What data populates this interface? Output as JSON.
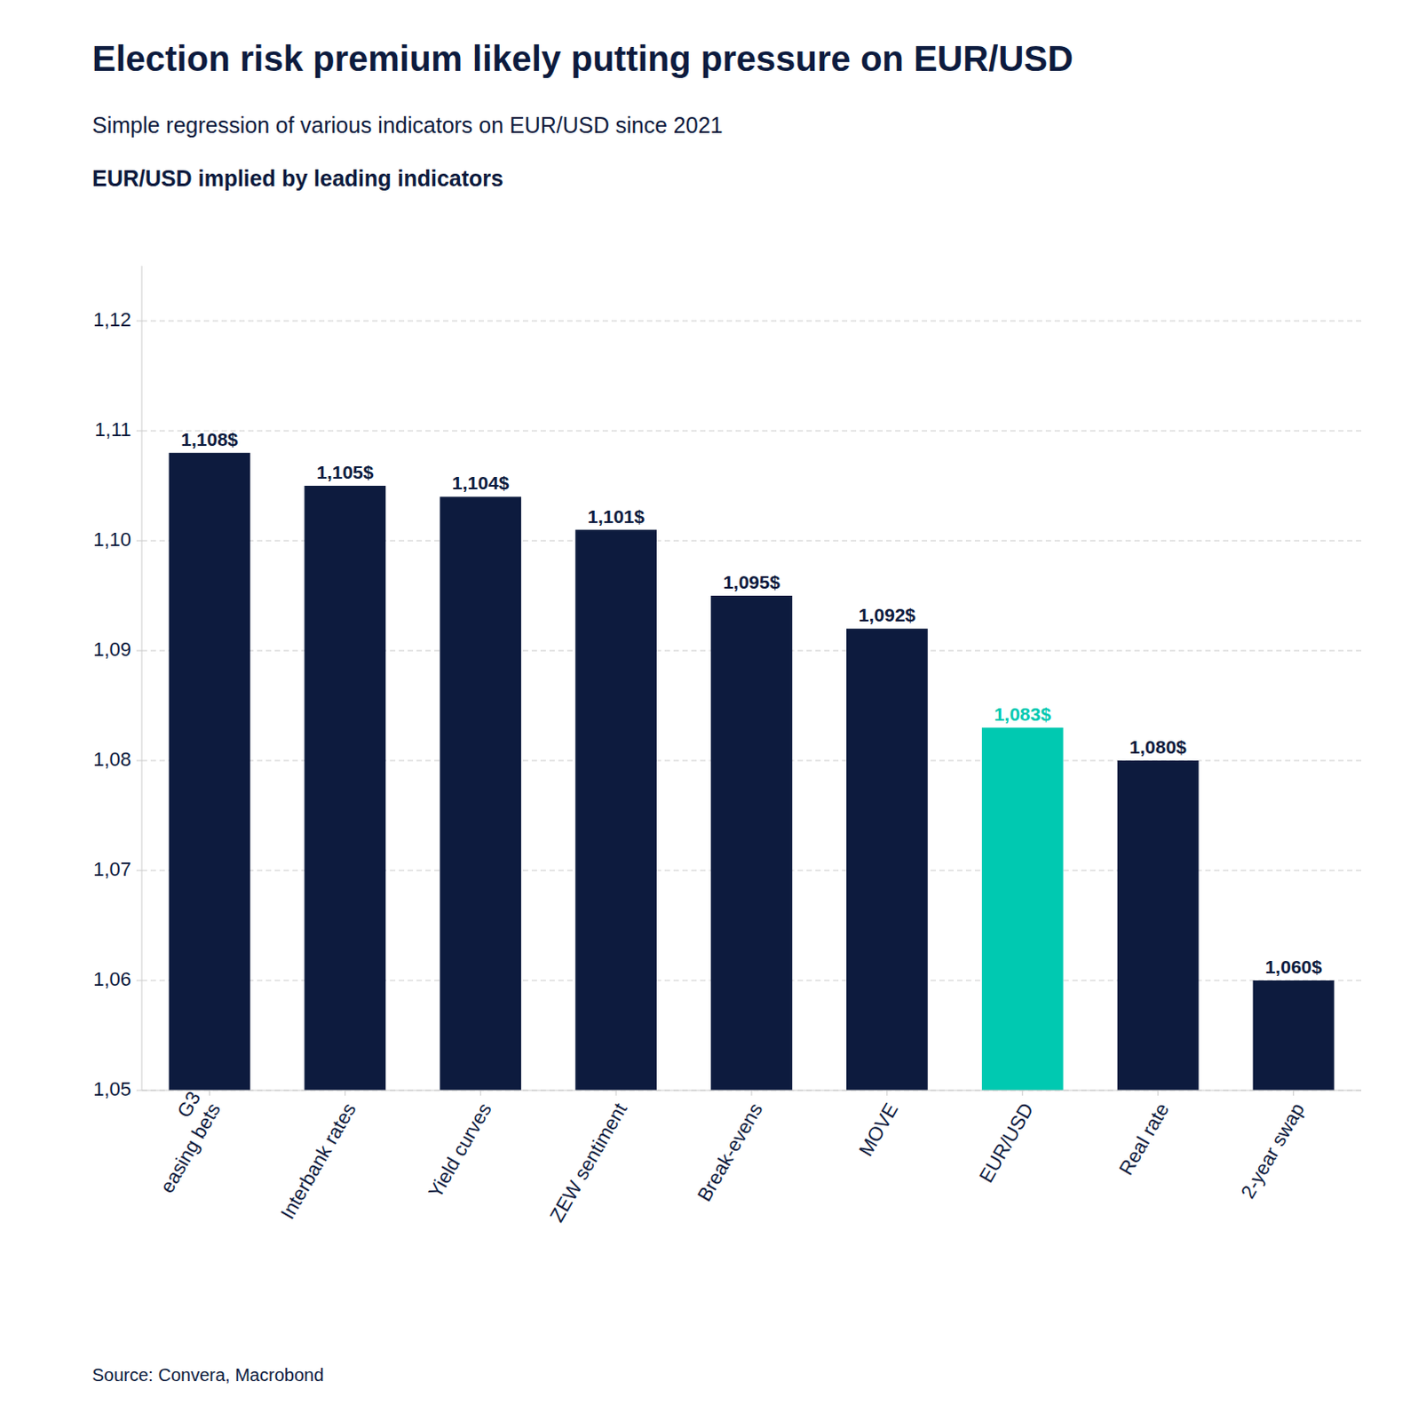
{
  "chart_data": {
    "type": "bar",
    "title": "Election risk premium likely putting pressure on EUR/USD",
    "subtitle": "Simple regression of various indicators on EUR/USD since 2021",
    "annotations": [
      "EUR/USD implied by leading indicators",
      "Source: Convera, Macrobond"
    ],
    "categories": [
      "G3\neasing bets",
      "Interbank rates",
      "Yield curves",
      "ZEW sentiment",
      "Break-evens",
      "MOVE",
      "EUR/USD",
      "Real rate",
      "2-year swap"
    ],
    "values": [
      1.108,
      1.105,
      1.104,
      1.101,
      1.095,
      1.092,
      1.083,
      1.08,
      1.06
    ],
    "value_labels": [
      "1,108$",
      "1,105$",
      "1,104$",
      "1,101$",
      "1,095$",
      "1,092$",
      "1,083$",
      "1,080$",
      "1,060$"
    ],
    "colors": [
      "#0d1b3e",
      "#0d1b3e",
      "#0d1b3e",
      "#0d1b3e",
      "#0d1b3e",
      "#0d1b3e",
      "#00c9b1",
      "#0d1b3e",
      "#0d1b3e"
    ],
    "ylim": [
      1.05,
      1.125
    ],
    "yticks": [
      {
        "value": 1.05,
        "label": "1,05"
      },
      {
        "value": 1.06,
        "label": "1,06"
      },
      {
        "value": 1.07,
        "label": "1,07"
      },
      {
        "value": 1.08,
        "label": "1,08"
      },
      {
        "value": 1.09,
        "label": "1,09"
      },
      {
        "value": 1.1,
        "label": "1,10"
      },
      {
        "value": 1.11,
        "label": "1,11"
      },
      {
        "value": 1.12,
        "label": "1,12"
      }
    ],
    "grid": true,
    "data_labels": true
  }
}
